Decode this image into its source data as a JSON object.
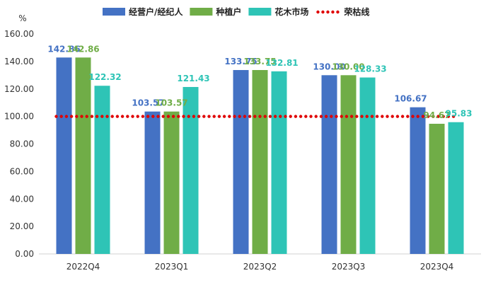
{
  "chart_data": {
    "type": "bar",
    "unit": "%",
    "categories": [
      "2022Q4",
      "2023Q1",
      "2023Q2",
      "2023Q3",
      "2023Q4"
    ],
    "series": [
      {
        "name": "经营户/经纪人",
        "color": "#4472C4",
        "values": [
          142.86,
          103.57,
          133.75,
          130.0,
          106.67
        ],
        "labels": [
          "142.86",
          "103.57",
          "133.75",
          "130.00",
          "106.67"
        ]
      },
      {
        "name": "种植户",
        "color": "#70AD47",
        "values": [
          142.86,
          103.57,
          133.75,
          130.0,
          94.67
        ],
        "labels": [
          "142.86",
          "103.57",
          "133.75",
          "130.00",
          "94.67"
        ]
      },
      {
        "name": "花木市场",
        "color": "#2EC4B6",
        "values": [
          122.32,
          121.43,
          132.81,
          128.33,
          95.83
        ],
        "labels": [
          "122.32",
          "121.43",
          "132.81",
          "128.33",
          "95.83"
        ]
      }
    ],
    "reference_line": {
      "name": "荣枯线",
      "value": 100,
      "color": "#E00000",
      "style": "dotted"
    },
    "ylim": [
      0,
      160
    ],
    "yticks": [
      "0.00",
      "20.00",
      "40.00",
      "60.00",
      "80.00",
      "100.00",
      "120.00",
      "140.00",
      "160.00"
    ],
    "grid": false,
    "legend_position": "top"
  }
}
